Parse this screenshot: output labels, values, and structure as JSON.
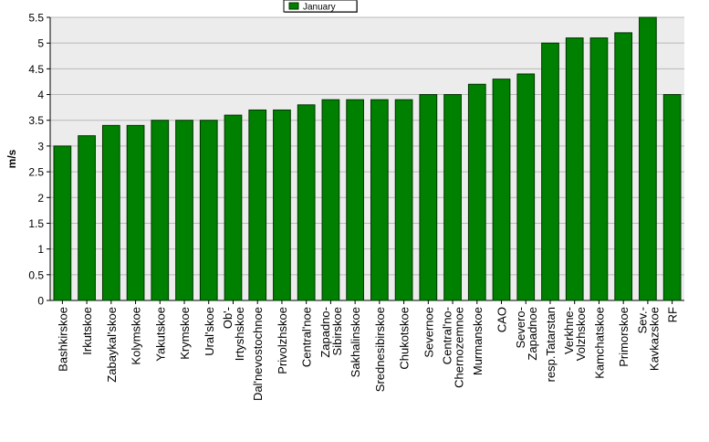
{
  "chart_data": {
    "type": "bar",
    "ylabel": "m/s",
    "ylim": [
      0,
      5.5
    ],
    "yticks": [
      "0",
      "0.5",
      "1",
      "1.5",
      "2",
      "2.5",
      "3",
      "3.5",
      "4",
      "4.5",
      "5",
      "5.5"
    ],
    "grid": true,
    "legend_position": "top-center",
    "categories": [
      "Bashkirskoe",
      "Irkutskoe",
      "Zabaykal'skoe",
      "Kolymskoe",
      "Yakutskoe",
      "Krymskoe",
      "Ural'skoe",
      "Ob'-\nIrtyshskoe",
      "Dal'nevostochnoe",
      "Privolzhskoe",
      "Central'noe",
      "Zapadno-\nSibirskoe",
      "Sakhalinskoe",
      "Srednesibirskoe",
      "Chukotskoe",
      "Severnoe",
      "Central'no-\nChernozemnoe",
      "Murmanskoe",
      "CAO",
      "Severo-\nZapadnoe",
      "resp.Tatarstan",
      "Verkhne-\nVolzhskoe",
      "Kamchatskoe",
      "Primorskoe",
      "Sev.-\nKavkazskoe",
      "RF"
    ],
    "series": [
      {
        "name": "January",
        "color": "#008000",
        "values": [
          3.0,
          3.2,
          3.4,
          3.4,
          3.5,
          3.5,
          3.5,
          3.6,
          3.7,
          3.7,
          3.8,
          3.9,
          3.9,
          3.9,
          3.9,
          4.0,
          4.0,
          4.2,
          4.3,
          4.4,
          5.0,
          5.1,
          5.1,
          5.2,
          5.5,
          4.0
        ]
      }
    ]
  },
  "colors": {
    "plot_background": "#ececec",
    "gridline": "#b8b8b8",
    "bar_fill": "#008000",
    "bar_stroke": "#003300"
  }
}
